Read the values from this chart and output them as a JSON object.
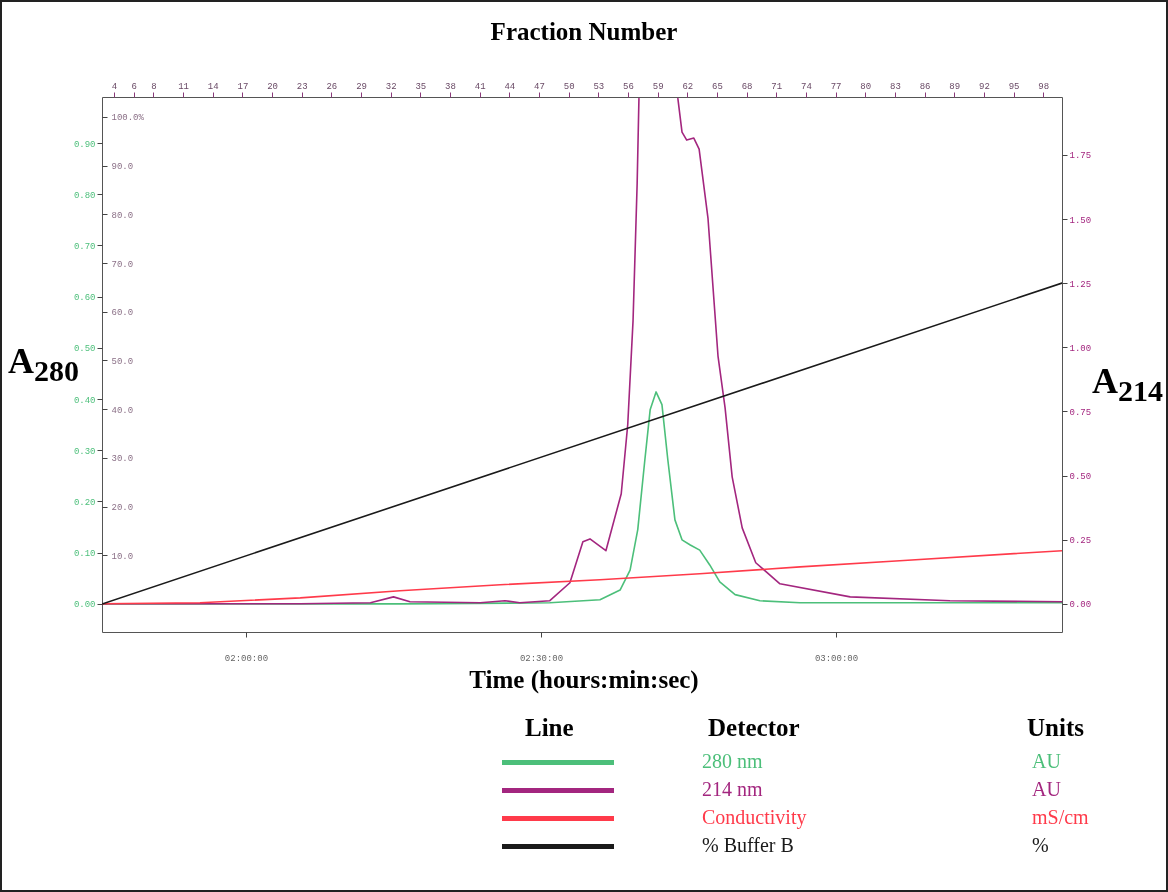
{
  "chart_data": {
    "type": "line",
    "x2label": "Fraction Number",
    "xlabel": "Time (hours:min:sec)",
    "ylabel": "A$_{280}$",
    "y2label": "A$_{214}$",
    "legend_title": "Detector",
    "annotations": [
      "Line",
      "Units",
      "AU",
      "AU",
      "mS/cm",
      "%"
    ],
    "legend": "bottom",
    "xlim": [
      1.756,
      3.383
    ],
    "xticks": [
      {
        "value": 2,
        "label": "02:00:00"
      },
      {
        "value": 2.5,
        "label": "02:30:00"
      },
      {
        "value": 3,
        "label": "03:00:00"
      }
    ],
    "x2lim": [
      2.8,
      99.9
    ],
    "x2ticks": [
      4,
      6,
      8,
      11,
      14,
      17,
      20,
      23,
      26,
      29,
      32,
      35,
      38,
      41,
      44,
      47,
      50,
      53,
      56,
      59,
      62,
      65,
      68,
      71,
      74,
      77,
      80,
      83,
      86,
      89,
      92,
      95,
      98
    ],
    "ylim": [
      -0.055,
      0.99
    ],
    "yticks": [
      {
        "value": 0,
        "label": "0.00"
      },
      {
        "value": 0.1,
        "label": "0.10"
      },
      {
        "value": 0.2,
        "label": "0.20"
      },
      {
        "value": 0.3,
        "label": "0.30"
      },
      {
        "value": 0.4,
        "label": "0.40"
      },
      {
        "value": 0.5,
        "label": "0.50"
      },
      {
        "value": 0.6,
        "label": "0.60"
      },
      {
        "value": 0.7,
        "label": "0.70"
      },
      {
        "value": 0.8,
        "label": "0.80"
      },
      {
        "value": 0.9,
        "label": "0.90"
      }
    ],
    "y2lim": [
      -0.11,
      1.976
    ],
    "y2ticks": [
      {
        "value": 0,
        "label": "0.00"
      },
      {
        "value": 0.25,
        "label": "0.25"
      },
      {
        "value": 0.5,
        "label": "0.50"
      },
      {
        "value": 0.75,
        "label": "0.75"
      },
      {
        "value": 1,
        "label": "1.00"
      },
      {
        "value": 1.25,
        "label": "1.25"
      },
      {
        "value": 1.5,
        "label": "1.50"
      },
      {
        "value": 1.75,
        "label": "1.75"
      }
    ],
    "y3lim": [
      -5.75,
      104.1
    ],
    "y3ticks": [
      {
        "value": 0,
        "label": null
      },
      {
        "value": 10,
        "label": "10.0"
      },
      {
        "value": 20,
        "label": "20.0"
      },
      {
        "value": 30,
        "label": "30.0"
      },
      {
        "value": 40,
        "label": "40.0"
      },
      {
        "value": 50,
        "label": "50.0"
      },
      {
        "value": 60,
        "label": "60.0"
      },
      {
        "value": 70,
        "label": "70.0"
      },
      {
        "value": 80,
        "label": "80.0"
      },
      {
        "value": 90,
        "label": "90.0"
      },
      {
        "value": 100,
        "label": "100.0%"
      }
    ],
    "series": [
      {
        "name": "280 nm",
        "color": "#4cbf7a",
        "x": [
          1.756,
          2.261,
          2.515,
          2.6,
          2.634,
          2.651,
          2.664,
          2.676,
          2.685,
          2.695,
          2.705,
          2.715,
          2.727,
          2.739,
          2.753,
          2.769,
          2.786,
          2.803,
          2.829,
          2.871,
          2.939,
          3.383
        ],
        "values": [
          0,
          0,
          0.002,
          0.008,
          0.027,
          0.066,
          0.145,
          0.281,
          0.379,
          0.414,
          0.389,
          0.281,
          0.164,
          0.125,
          0.115,
          0.105,
          0.076,
          0.043,
          0.018,
          0.006,
          0.002,
          0.002
        ]
      },
      {
        "name": "214 nm",
        "color": "#a3267f",
        "axis": "y2",
        "x": [
          1.756,
          2.092,
          2.211,
          2.25,
          2.278,
          2.397,
          2.439,
          2.464,
          2.515,
          2.549,
          2.571,
          2.583,
          2.61,
          2.636,
          2.647,
          2.656,
          2.663,
          2.666,
          2.698,
          2.732,
          2.739,
          2.747,
          2.759,
          2.768,
          2.783,
          2.8,
          2.812,
          2.824,
          2.841,
          2.864,
          2.905,
          3.024,
          3.193,
          3.383
        ],
        "values": [
          0,
          0,
          0.004,
          0.027,
          0.008,
          0.004,
          0.012,
          0.004,
          0.012,
          0.082,
          0.242,
          0.253,
          0.207,
          0.429,
          0.698,
          1.103,
          1.641,
          1.97,
          null,
          1.97,
          1.839,
          1.808,
          1.816,
          1.773,
          1.504,
          0.966,
          0.764,
          0.495,
          0.296,
          0.16,
          0.078,
          0.027,
          0.012,
          0.008
        ]
      },
      {
        "name": "Conductivity",
        "color": "#ff3a4a",
        "axis": "y2",
        "x": [
          1.756,
          1.922,
          2.092,
          2.261,
          2.431,
          2.6,
          2.769,
          2.939,
          3.108,
          3.383
        ],
        "values": [
          0,
          0.004,
          0.023,
          0.051,
          0.074,
          0.094,
          0.117,
          0.144,
          0.168,
          0.207
        ]
      },
      {
        "name": "% Buffer B",
        "color": "#1a1a1a",
        "axis": "y3",
        "x": [
          1.756,
          3.383
        ],
        "values": [
          0,
          65.9
        ]
      }
    ]
  }
}
